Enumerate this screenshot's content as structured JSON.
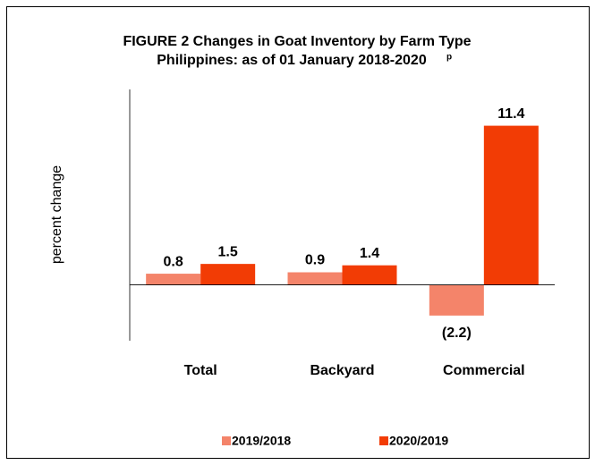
{
  "chart_data": {
    "type": "bar",
    "title": "FIGURE 2  Changes in Goat Inventory by Farm Type",
    "subtitle": "Philippines: as of 01 January 2018-2020",
    "subtitle_superscript": "p",
    "ylabel": "percent change",
    "categories": [
      "Total",
      "Backyard",
      "Commercial"
    ],
    "series": [
      {
        "name": "2019/2018",
        "color": "#f4846a",
        "values": [
          0.8,
          0.9,
          -2.2
        ],
        "value_labels": [
          "0.8",
          "0.9",
          "(2.2)"
        ]
      },
      {
        "name": "2020/2019",
        "color": "#f23c05",
        "values": [
          1.5,
          1.4,
          11.4
        ],
        "value_labels": [
          "1.5",
          "1.4",
          "11.4"
        ]
      }
    ],
    "ylim": [
      -4,
      14
    ]
  }
}
